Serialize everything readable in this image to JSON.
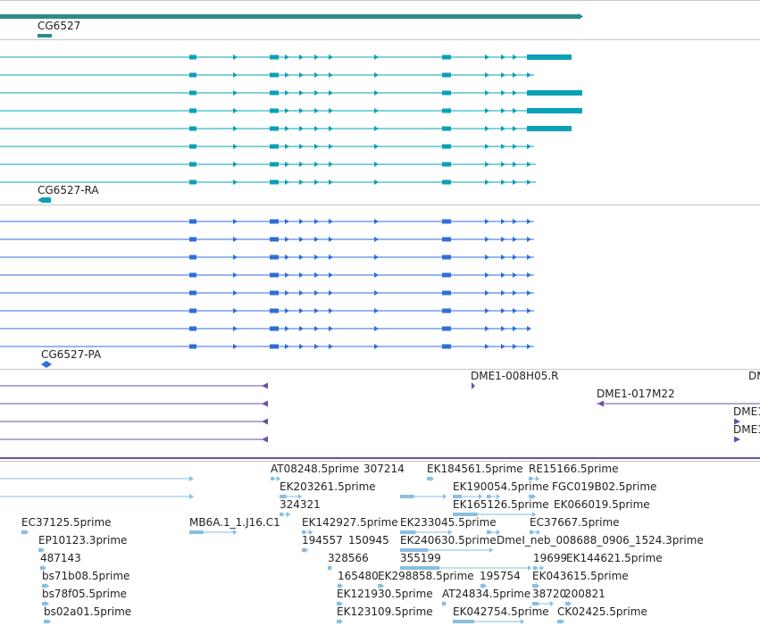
{
  "colors": {
    "gene": "#2e8b8b",
    "mrna": "#0aa1b8",
    "protein": "#2f6fd6",
    "clone": "#6a4fa8",
    "est": "#8abedf",
    "divider": "#c8c8c8",
    "label": "#222222"
  },
  "tracks": {
    "gene": {
      "label": "CG6527"
    },
    "transcripts": {
      "label": "CG6527-RA"
    },
    "proteins": {
      "label": "CG6527-PA"
    },
    "clones": {
      "labels": [
        "DME1-008H05.R",
        "DME1-017M22",
        "DM",
        "DME1",
        "DME1"
      ]
    },
    "ests": {
      "labels": [
        "AT08248.5prime",
        "307214",
        "EK184561.5prime",
        "RE15166.5prime",
        "EK203261.5prime",
        "EK190054.5prime",
        "FGC019B02.5prime",
        "324321",
        "EK165126.5prime",
        "EK066019.5prime",
        "EC37125.5prime",
        "MB6A.1_1.J16.C1",
        "EK142927.5prime",
        "EK233045.5prime",
        "EC37667.5prime",
        "EP10123.3prime",
        "194557",
        "150945",
        "EK240630.5prime",
        "DmeI_neb_008688_0906_1524.3prime",
        "487143",
        "328566",
        "355199",
        "19699",
        "EK144621.5prime",
        "bs71b08.5prime",
        "165480",
        "EK298858.5prime",
        "195754",
        "EK043615.5prime",
        "bs78f05.5prime",
        "EK121930.5prime",
        "AT24834.5prime",
        "38720",
        "200821",
        "bs02a01.5prime",
        "EK123109.5prime",
        "EK042754.5prime",
        "CK02425.5prime"
      ]
    }
  }
}
